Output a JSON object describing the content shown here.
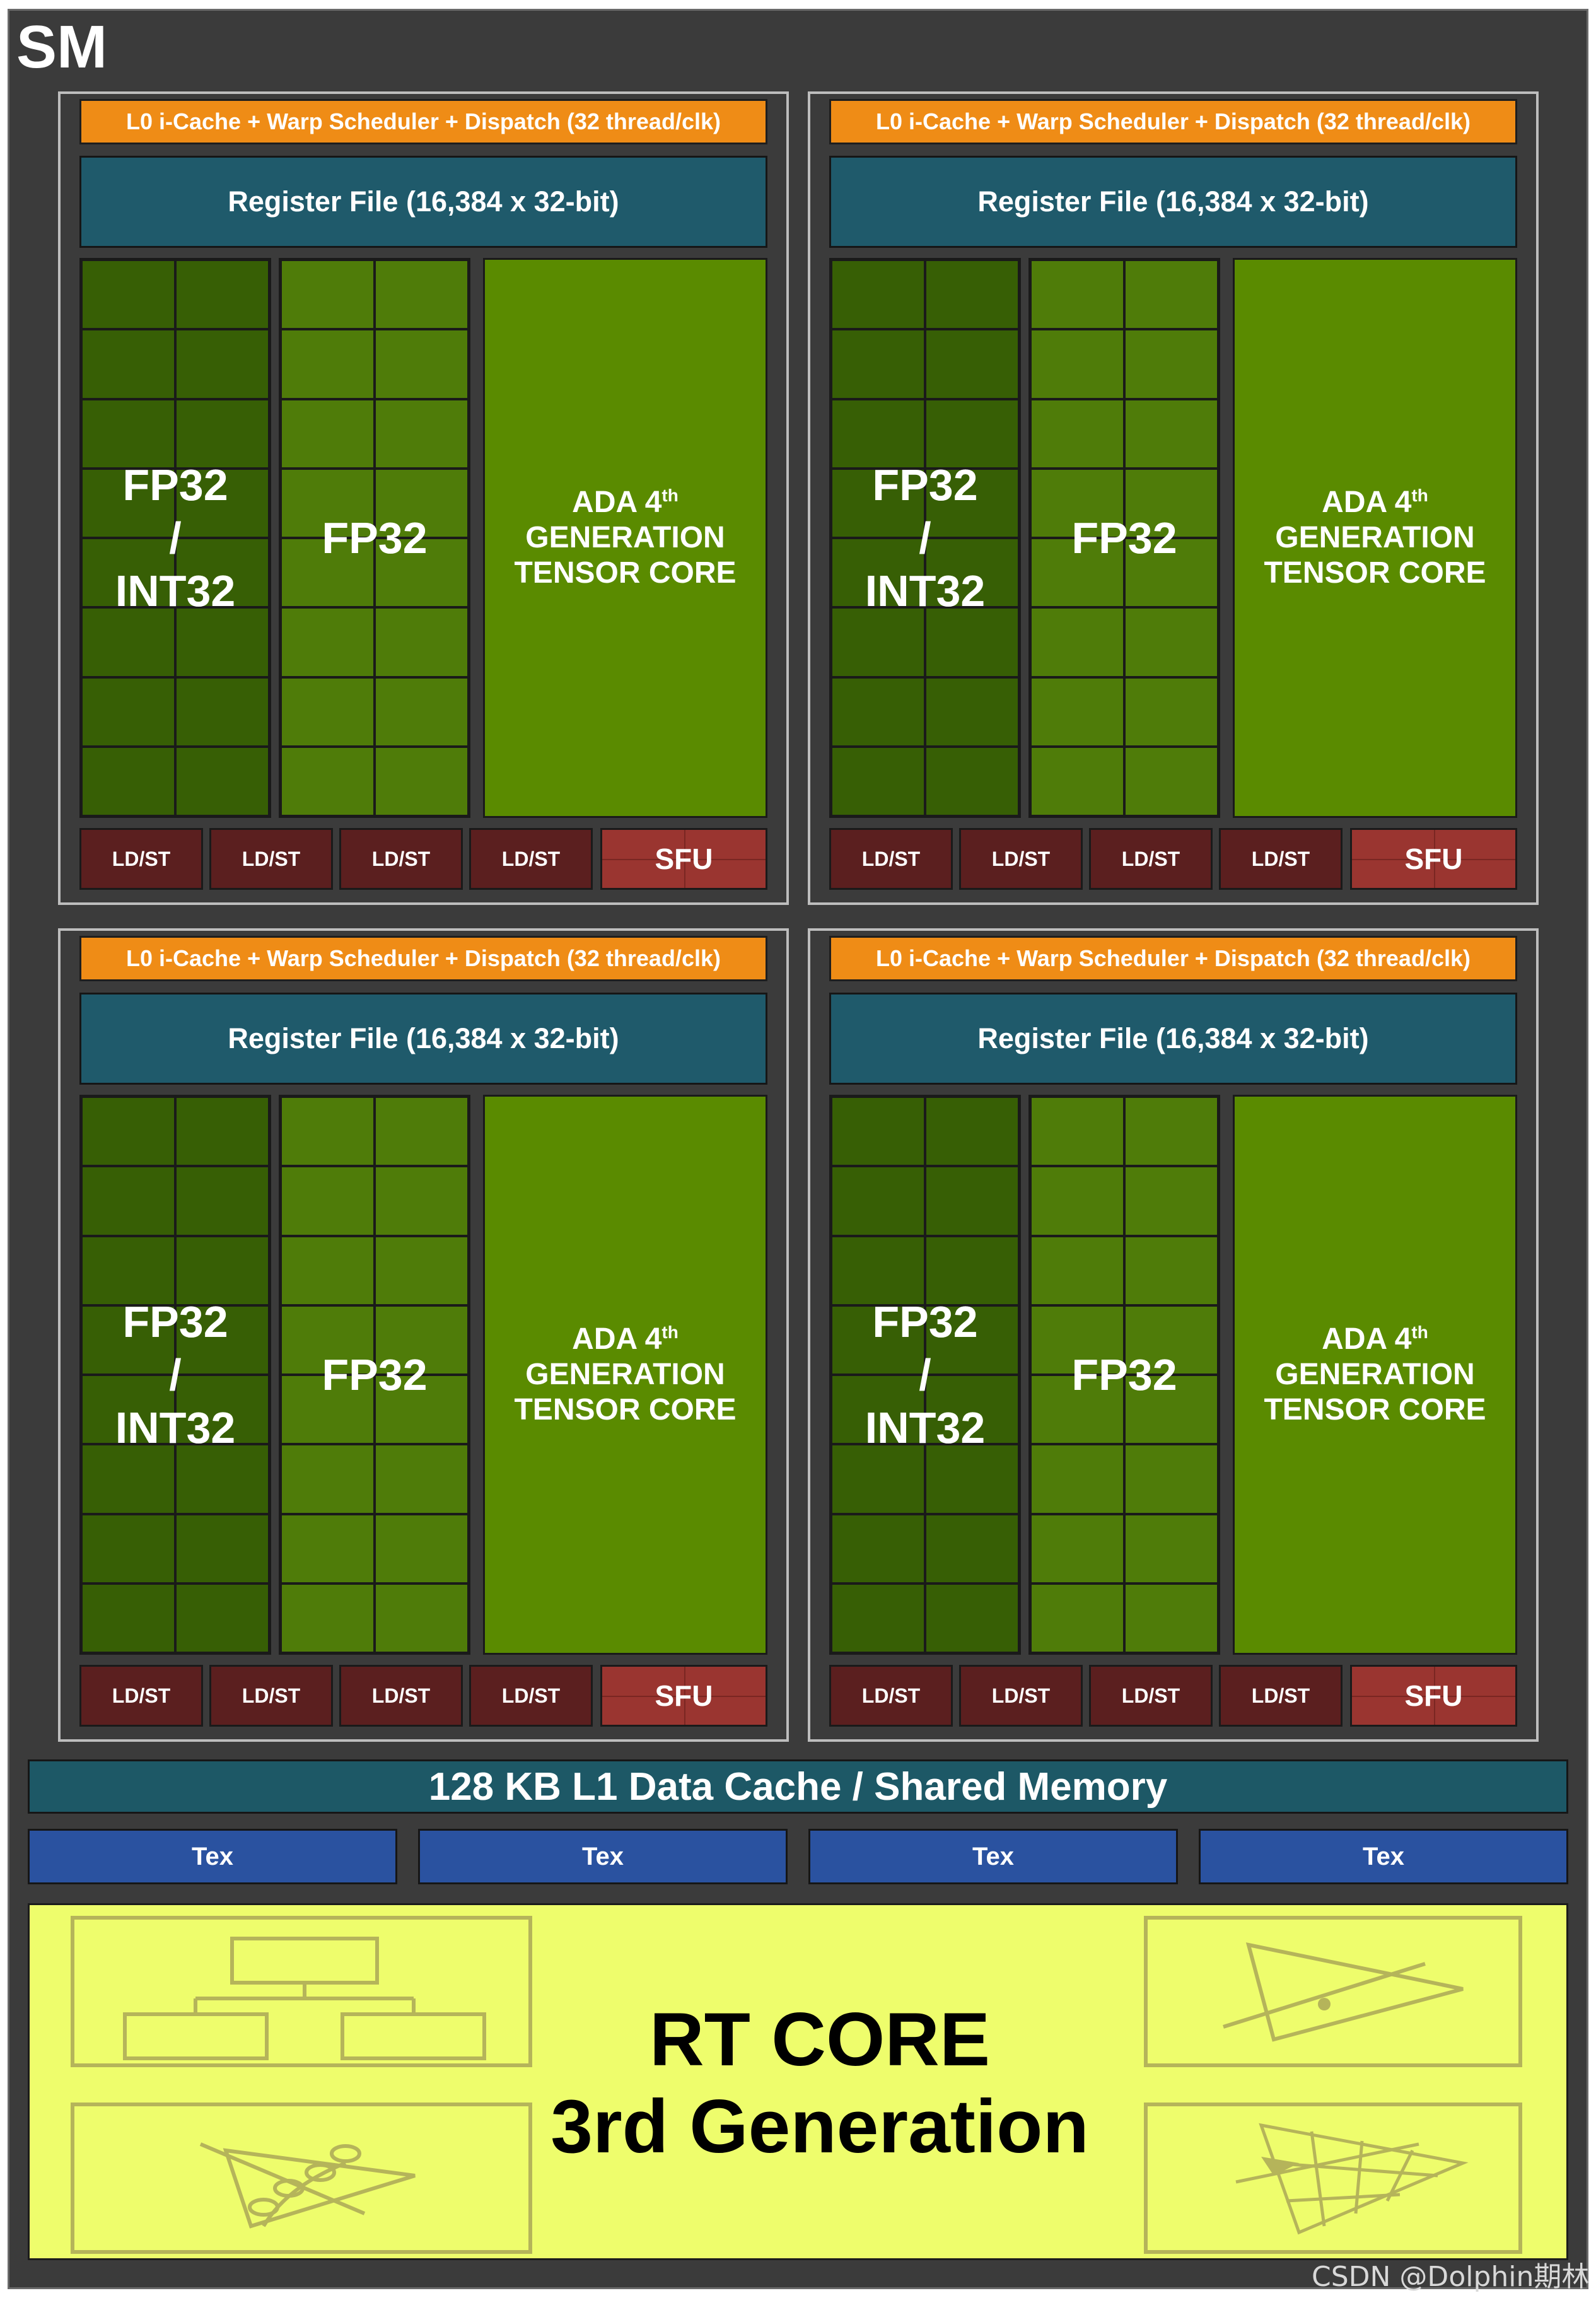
{
  "sm_title": "SM",
  "quadrants": [
    {
      "scheduler": "L0 i-Cache + Warp Scheduler + Dispatch (32 thread/clk)",
      "register_file": "Register File (16,384 x 32-bit)",
      "fp_int_label": "FP32\n/\nINT32",
      "fp_label": "FP32",
      "tensor_line1": "ADA 4",
      "tensor_sup": "th",
      "tensor_line2": "GENERATION",
      "tensor_line3": "TENSOR CORE",
      "ldst": [
        "LD/ST",
        "LD/ST",
        "LD/ST",
        "LD/ST"
      ],
      "sfu": "SFU"
    },
    {
      "scheduler": "L0 i-Cache + Warp Scheduler + Dispatch (32 thread/clk)",
      "register_file": "Register File (16,384 x 32-bit)",
      "fp_int_label": "FP32\n/\nINT32",
      "fp_label": "FP32",
      "tensor_line1": "ADA 4",
      "tensor_sup": "th",
      "tensor_line2": "GENERATION",
      "tensor_line3": "TENSOR CORE",
      "ldst": [
        "LD/ST",
        "LD/ST",
        "LD/ST",
        "LD/ST"
      ],
      "sfu": "SFU"
    },
    {
      "scheduler": "L0 i-Cache + Warp Scheduler + Dispatch (32 thread/clk)",
      "register_file": "Register File (16,384 x 32-bit)",
      "fp_int_label": "FP32\n/\nINT32",
      "fp_label": "FP32",
      "tensor_line1": "ADA 4",
      "tensor_sup": "th",
      "tensor_line2": "GENERATION",
      "tensor_line3": "TENSOR CORE",
      "ldst": [
        "LD/ST",
        "LD/ST",
        "LD/ST",
        "LD/ST"
      ],
      "sfu": "SFU"
    },
    {
      "scheduler": "L0 i-Cache + Warp Scheduler + Dispatch (32 thread/clk)",
      "register_file": "Register File (16,384 x 32-bit)",
      "fp_int_label": "FP32\n/\nINT32",
      "fp_label": "FP32",
      "tensor_line1": "ADA 4",
      "tensor_sup": "th",
      "tensor_line2": "GENERATION",
      "tensor_line3": "TENSOR CORE",
      "ldst": [
        "LD/ST",
        "LD/ST",
        "LD/ST",
        "LD/ST"
      ],
      "sfu": "SFU"
    }
  ],
  "l1_cache": "128 KB L1 Data Cache / Shared Memory",
  "tex_units": [
    "Tex",
    "Tex",
    "Tex",
    "Tex"
  ],
  "rt_core": {
    "line1": "RT CORE",
    "line2": "3rd Generation"
  },
  "icons": [
    "bvh-tree-icon",
    "ray-triangle-icon",
    "opacity-micromap-icon",
    "displaced-micromesh-icon"
  ],
  "watermark": "CSDN @Dolphin期林",
  "colors": {
    "sm_background": "#3b3b3b",
    "scheduler": "#ef8c16",
    "register_file": "#1f5a6b",
    "fp32_int32": "#335e04",
    "fp32": "#4d7a08",
    "tensor_core": "#5a8b00",
    "ldst": "#5b1f1f",
    "sfu": "#9a3530",
    "tex": "#2a52a0",
    "rt_core": "#eefd6c"
  }
}
